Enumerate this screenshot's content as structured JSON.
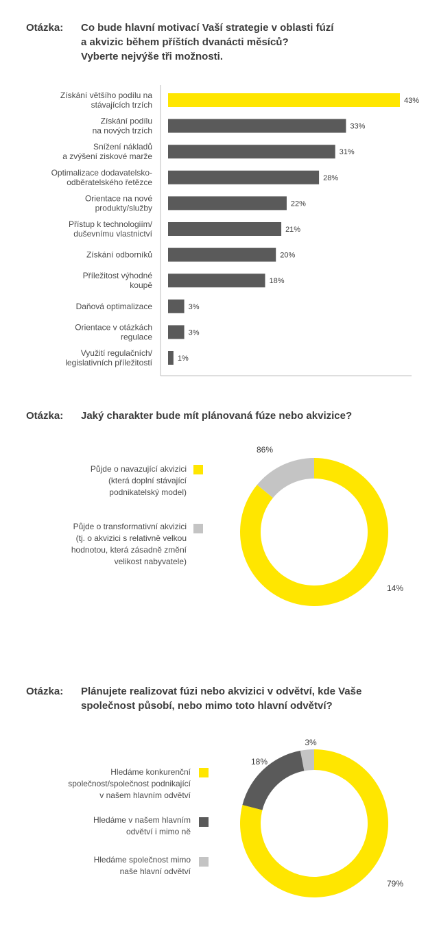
{
  "colors": {
    "yellow": "#FFE600",
    "dark": "#5a5a5a",
    "light": "#c4c4c4",
    "axis": "#bdbdbd"
  },
  "q1": {
    "prefix": "Otázka:",
    "line1": "Co bude hlavní motivací Vaší strategie v oblasti fúzí",
    "line2": "a akvizic během příštích dvanácti měsíců?",
    "line3": "Vyberte nejvýše tři možnosti."
  },
  "q2": {
    "prefix": "Otázka:",
    "line1": "Jaký charakter bude mít plánovaná fúze nebo akvizice?"
  },
  "q3": {
    "prefix": "Otázka:",
    "line1": "Plánujete realizovat fúzi nebo akvizici v odvětví, kde Vaše",
    "line2": "společnost působí, nebo mimo toto hlavní odvětví?"
  },
  "chart_data": [
    {
      "type": "bar",
      "orientation": "horizontal",
      "categories": [
        [
          "Získání většího podílu na",
          "stávajících trzích"
        ],
        [
          "Získání podílu",
          "na nových trzích"
        ],
        [
          "Snížení nákladů",
          "a zvýšení ziskové marže"
        ],
        [
          "Optimalizace dodavatelsko-",
          "odběratelského řetězce"
        ],
        [
          "Orientace na nové",
          "produkty/služby"
        ],
        [
          "Přístup k technologiím/",
          "duševnímu vlastnictví"
        ],
        [
          "Získání odborníků"
        ],
        [
          "Příležitost výhodné",
          "koupě"
        ],
        [
          "Daňová optimalizace"
        ],
        [
          "Orientace v otázkách",
          "regulace"
        ],
        [
          "Využití regulačních/",
          "legislativních příležitostí"
        ]
      ],
      "values": [
        43,
        33,
        31,
        28,
        22,
        21,
        20,
        18,
        3,
        3,
        1
      ],
      "value_labels": [
        "43%",
        "33%",
        "31%",
        "28%",
        "22%",
        "21%",
        "20%",
        "18%",
        "3%",
        "3%",
        "1%"
      ],
      "highlight_index": 0,
      "xlim": [
        0,
        43
      ]
    },
    {
      "type": "pie",
      "style": "donut",
      "slices": [
        {
          "label": "Půjde o navazující akvizici\n(která doplní stávající\npodnikatelský model)",
          "value": 86,
          "value_label": "86%",
          "color": "#FFE600"
        },
        {
          "label": "Půjde o transformativní akvizici\n(tj. o akvizici s relativně velkou\nhodnotou, která zásadně změní\nvelikost nabyvatele)",
          "value": 14,
          "value_label": "14%",
          "color": "#c4c4c4"
        }
      ]
    },
    {
      "type": "pie",
      "style": "donut",
      "slices": [
        {
          "label": "Hledáme konkurenční\nspolečnost/společnost podnikající\nv našem hlavním odvětví",
          "value": 79,
          "value_label": "79%",
          "color": "#FFE600"
        },
        {
          "label": "Hledáme v našem hlavním\nodvětví i mimo ně",
          "value": 18,
          "value_label": "18%",
          "color": "#5a5a5a"
        },
        {
          "label": "Hledáme společnost mimo\nnaše hlavní odvětví",
          "value": 3,
          "value_label": "3%",
          "color": "#c4c4c4"
        }
      ]
    }
  ]
}
